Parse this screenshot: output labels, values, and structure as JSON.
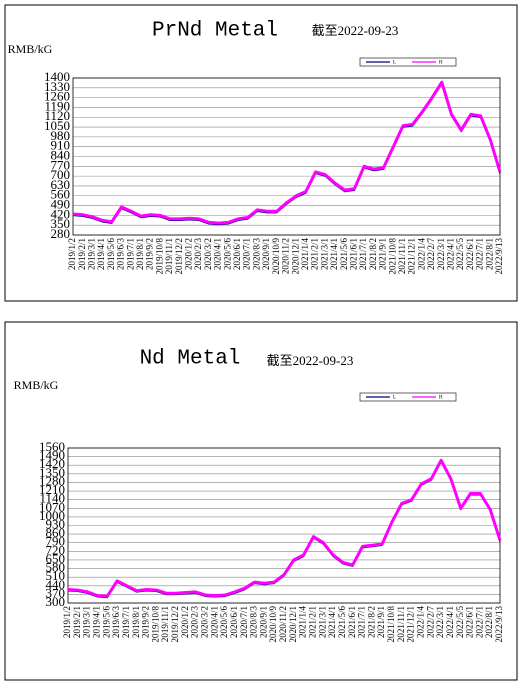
{
  "chart_data": [
    {
      "type": "line",
      "title": "PrNd Metal",
      "subtitle": "截至2022-09-23",
      "y_label": "RMB/kG",
      "categories": [
        "2019/1/2",
        "2019/2/1",
        "2019/3/1",
        "2019/4/1",
        "2019/5/6",
        "2019/6/3",
        "2019/7/1",
        "2019/8/1",
        "2019/9/2",
        "2019/10/8",
        "2019/11/1",
        "2019/12/2",
        "2020/1/2",
        "2020/2/3",
        "2020/3/2",
        "2020/4/1",
        "2020/5/6",
        "2020/6/1",
        "2020/7/1",
        "2020/8/3",
        "2020/9/1",
        "2020/10/9",
        "2020/11/2",
        "2020/12/1",
        "2021/1/4",
        "2021/2/1",
        "2021/3/1",
        "2021/4/1",
        "2021/5/6",
        "2021/6/1",
        "2021/7/1",
        "2021/8/2",
        "2021/9/1",
        "2021/10/8",
        "2021/11/1",
        "2021/12/1",
        "2022/1/4",
        "2022/2/7",
        "2022/3/1",
        "2022/4/1",
        "2022/5/5",
        "2022/6/1",
        "2022/7/1",
        "2022/8/1",
        "2022/9/13"
      ],
      "series": [
        {
          "name": "L",
          "color": "#000080",
          "values": [
            420,
            415,
            400,
            375,
            365,
            470,
            440,
            405,
            415,
            410,
            385,
            385,
            390,
            385,
            360,
            355,
            360,
            385,
            395,
            450,
            440,
            440,
            500,
            550,
            580,
            720,
            700,
            640,
            590,
            600,
            760,
            740,
            750,
            900,
            1050,
            1060,
            1150,
            1250,
            1360,
            1130,
            1020,
            1130,
            1120,
            950,
            720
          ]
        },
        {
          "name": "H",
          "color": "#ff00ff",
          "values": [
            430,
            425,
            410,
            385,
            375,
            480,
            450,
            415,
            425,
            420,
            395,
            395,
            400,
            395,
            370,
            365,
            370,
            395,
            405,
            460,
            450,
            450,
            510,
            560,
            590,
            730,
            710,
            650,
            600,
            610,
            770,
            750,
            760,
            910,
            1060,
            1070,
            1160,
            1260,
            1370,
            1140,
            1030,
            1140,
            1130,
            960,
            730
          ]
        }
      ],
      "ylim": [
        280,
        1400
      ],
      "yticks": [
        280,
        350,
        420,
        490,
        560,
        630,
        700,
        770,
        840,
        910,
        980,
        1050,
        1120,
        1190,
        1260,
        1330,
        1400
      ],
      "grid": true
    },
    {
      "type": "line",
      "title": "Nd Metal",
      "subtitle": "截至2022-09-23",
      "y_label": "RMB/kG",
      "categories": [
        "2019/1/2",
        "2019/2/1",
        "2019/3/1",
        "2019/4/1",
        "2019/5/6",
        "2019/6/3",
        "2019/7/1",
        "2019/8/1",
        "2019/9/2",
        "2019/10/8",
        "2019/11/1",
        "2019/12/2",
        "2020/1/2",
        "2020/2/3",
        "2020/3/2",
        "2020/4/1",
        "2020/5/6",
        "2020/6/1",
        "2020/7/1",
        "2020/8/3",
        "2020/9/1",
        "2020/10/9",
        "2020/11/2",
        "2020/12/1",
        "2021/1/4",
        "2021/2/1",
        "2021/3/1",
        "2021/4/1",
        "2021/5/6",
        "2021/6/1",
        "2021/7/1",
        "2021/8/2",
        "2021/9/1",
        "2021/10/8",
        "2021/11/1",
        "2021/12/1",
        "2022/1/4",
        "2022/2/7",
        "2022/3/1",
        "2022/4/1",
        "2022/5/5",
        "2022/6/1",
        "2022/7/1",
        "2022/8/1",
        "2022/9/13"
      ],
      "series": [
        {
          "name": "L",
          "color": "#000080",
          "values": [
            400,
            395,
            380,
            350,
            345,
            470,
            430,
            390,
            400,
            395,
            370,
            370,
            375,
            380,
            355,
            350,
            355,
            380,
            410,
            460,
            450,
            460,
            520,
            640,
            680,
            830,
            780,
            680,
            620,
            600,
            750,
            760,
            770,
            950,
            1100,
            1130,
            1260,
            1300,
            1450,
            1300,
            1060,
            1180,
            1180,
            1050,
            800
          ]
        },
        {
          "name": "H",
          "color": "#ff00ff",
          "values": [
            410,
            405,
            390,
            360,
            355,
            480,
            440,
            400,
            410,
            405,
            380,
            380,
            385,
            390,
            365,
            360,
            365,
            390,
            420,
            470,
            460,
            470,
            530,
            650,
            690,
            840,
            790,
            690,
            630,
            610,
            760,
            770,
            780,
            960,
            1110,
            1140,
            1270,
            1310,
            1460,
            1310,
            1070,
            1190,
            1190,
            1060,
            810
          ]
        }
      ],
      "ylim": [
        300,
        1560
      ],
      "yticks": [
        300,
        370,
        440,
        510,
        580,
        650,
        720,
        790,
        860,
        930,
        1000,
        1070,
        1140,
        1210,
        1280,
        1350,
        1420,
        1490,
        1560
      ],
      "grid": true
    }
  ]
}
